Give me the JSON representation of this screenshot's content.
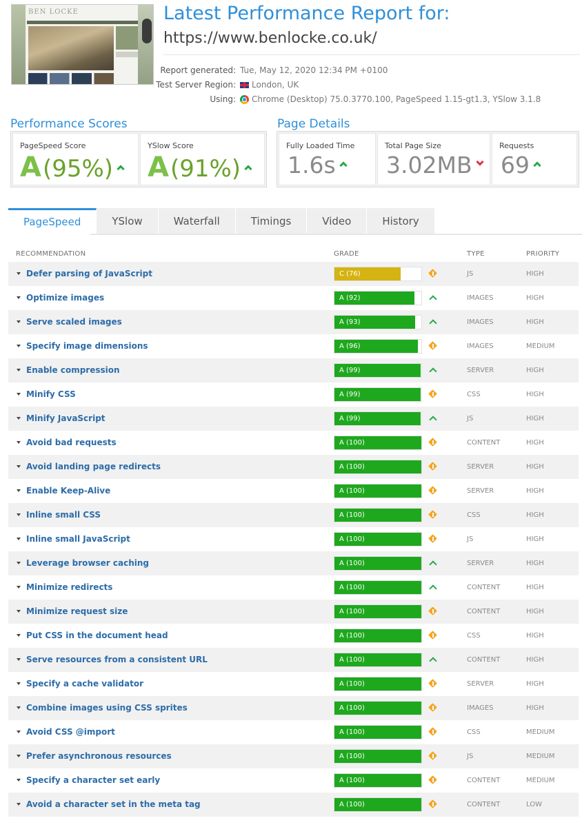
{
  "header": {
    "thumbnail_logo": "BEN LOCKE",
    "title": "Latest Performance Report for:",
    "url": "https://www.benlocke.co.uk/",
    "meta": [
      {
        "label": "Report generated:",
        "value": "Tue, May 12, 2020 12:34 PM +0100",
        "icon": ""
      },
      {
        "label": "Test Server Region:",
        "value": "London, UK",
        "icon": "uk-flag-icon"
      },
      {
        "label": "Using:",
        "value": "Chrome (Desktop) 75.0.3770.100, PageSpeed 1.15-gt1.3, YSlow 3.1.8",
        "icon": "chrome-icon"
      }
    ]
  },
  "scores": {
    "heading": "Performance Scores",
    "pagespeed": {
      "label": "PageSpeed Score",
      "grade": "A",
      "value": "(95%)",
      "trend": "up"
    },
    "yslow": {
      "label": "YSlow Score",
      "grade": "A",
      "value": "(91%)",
      "trend": "up"
    }
  },
  "details": {
    "heading": "Page Details",
    "loaded": {
      "label": "Fully Loaded Time",
      "value": "1.6s",
      "trend": "up"
    },
    "size": {
      "label": "Total Page Size",
      "value": "3.02MB",
      "trend": "down"
    },
    "requests": {
      "label": "Requests",
      "value": "69",
      "trend": "up"
    }
  },
  "tabs": [
    "PageSpeed",
    "YSlow",
    "Waterfall",
    "Timings",
    "Video",
    "History"
  ],
  "active_tab": "PageSpeed",
  "table": {
    "headers": {
      "recommendation": "RECOMMENDATION",
      "grade": "GRADE",
      "type": "TYPE",
      "priority": "PRIORITY"
    },
    "colors": {
      "grade_a": "#1ea81e",
      "grade_c": "#d4b312",
      "trend_up": "#2aa847",
      "trend_neutral": "#f5a623"
    },
    "rows": [
      {
        "name": "Defer parsing of JavaScript",
        "grade": "C (76)",
        "score": 76,
        "trend": "neutral",
        "type": "JS",
        "priority": "HIGH"
      },
      {
        "name": "Optimize images",
        "grade": "A (92)",
        "score": 92,
        "trend": "up",
        "type": "IMAGES",
        "priority": "HIGH"
      },
      {
        "name": "Serve scaled images",
        "grade": "A (93)",
        "score": 93,
        "trend": "up",
        "type": "IMAGES",
        "priority": "HIGH"
      },
      {
        "name": "Specify image dimensions",
        "grade": "A (96)",
        "score": 96,
        "trend": "neutral",
        "type": "IMAGES",
        "priority": "MEDIUM"
      },
      {
        "name": "Enable compression",
        "grade": "A (99)",
        "score": 99,
        "trend": "up",
        "type": "SERVER",
        "priority": "HIGH"
      },
      {
        "name": "Minify CSS",
        "grade": "A (99)",
        "score": 99,
        "trend": "neutral",
        "type": "CSS",
        "priority": "HIGH"
      },
      {
        "name": "Minify JavaScript",
        "grade": "A (99)",
        "score": 99,
        "trend": "up",
        "type": "JS",
        "priority": "HIGH"
      },
      {
        "name": "Avoid bad requests",
        "grade": "A (100)",
        "score": 100,
        "trend": "neutral",
        "type": "CONTENT",
        "priority": "HIGH"
      },
      {
        "name": "Avoid landing page redirects",
        "grade": "A (100)",
        "score": 100,
        "trend": "neutral",
        "type": "SERVER",
        "priority": "HIGH"
      },
      {
        "name": "Enable Keep-Alive",
        "grade": "A (100)",
        "score": 100,
        "trend": "neutral",
        "type": "SERVER",
        "priority": "HIGH"
      },
      {
        "name": "Inline small CSS",
        "grade": "A (100)",
        "score": 100,
        "trend": "neutral",
        "type": "CSS",
        "priority": "HIGH"
      },
      {
        "name": "Inline small JavaScript",
        "grade": "A (100)",
        "score": 100,
        "trend": "neutral",
        "type": "JS",
        "priority": "HIGH"
      },
      {
        "name": "Leverage browser caching",
        "grade": "A (100)",
        "score": 100,
        "trend": "up",
        "type": "SERVER",
        "priority": "HIGH"
      },
      {
        "name": "Minimize redirects",
        "grade": "A (100)",
        "score": 100,
        "trend": "up",
        "type": "CONTENT",
        "priority": "HIGH"
      },
      {
        "name": "Minimize request size",
        "grade": "A (100)",
        "score": 100,
        "trend": "neutral",
        "type": "CONTENT",
        "priority": "HIGH"
      },
      {
        "name": "Put CSS in the document head",
        "grade": "A (100)",
        "score": 100,
        "trend": "neutral",
        "type": "CSS",
        "priority": "HIGH"
      },
      {
        "name": "Serve resources from a consistent URL",
        "grade": "A (100)",
        "score": 100,
        "trend": "up",
        "type": "CONTENT",
        "priority": "HIGH"
      },
      {
        "name": "Specify a cache validator",
        "grade": "A (100)",
        "score": 100,
        "trend": "neutral",
        "type": "SERVER",
        "priority": "HIGH"
      },
      {
        "name": "Combine images using CSS sprites",
        "grade": "A (100)",
        "score": 100,
        "trend": "neutral",
        "type": "IMAGES",
        "priority": "HIGH"
      },
      {
        "name": "Avoid CSS @import",
        "grade": "A (100)",
        "score": 100,
        "trend": "neutral",
        "type": "CSS",
        "priority": "MEDIUM"
      },
      {
        "name": "Prefer asynchronous resources",
        "grade": "A (100)",
        "score": 100,
        "trend": "neutral",
        "type": "JS",
        "priority": "MEDIUM"
      },
      {
        "name": "Specify a character set early",
        "grade": "A (100)",
        "score": 100,
        "trend": "neutral",
        "type": "CONTENT",
        "priority": "MEDIUM"
      },
      {
        "name": "Avoid a character set in the meta tag",
        "grade": "A (100)",
        "score": 100,
        "trend": "neutral",
        "type": "CONTENT",
        "priority": "LOW"
      }
    ]
  }
}
